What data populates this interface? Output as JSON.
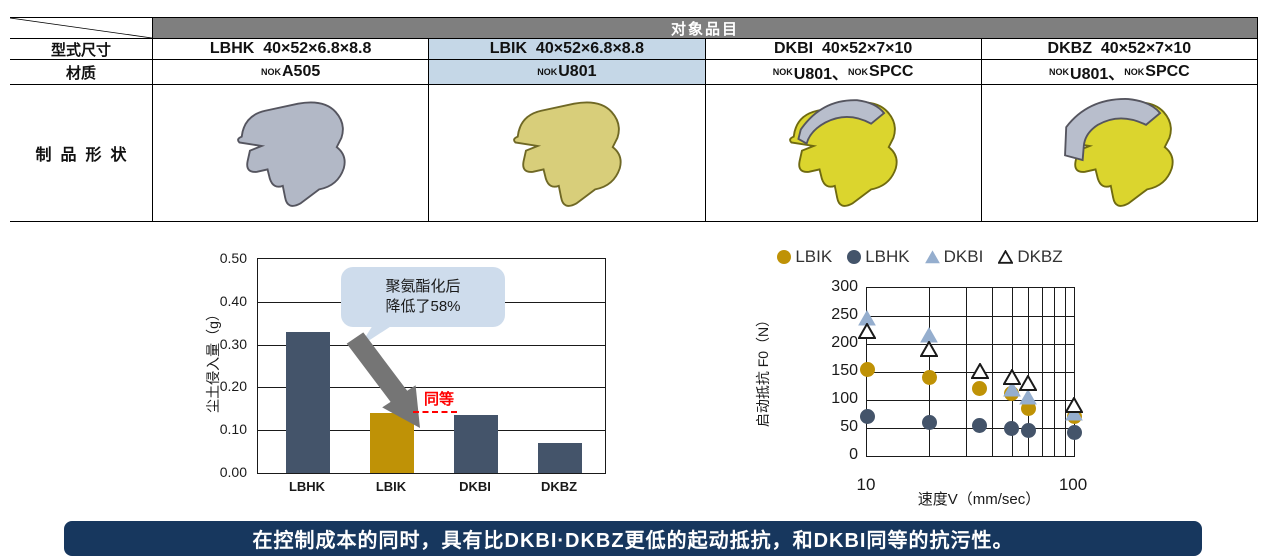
{
  "colors": {
    "header_gray": "#7f7f7f",
    "highlight_blue": "#c5d7e7",
    "dark_slate": "#44546A",
    "gold": "#BF9206",
    "light_blue_marker": "#95AECE",
    "callout_bg": "#cedcec",
    "arrow_gray": "#757575",
    "annotation_red": "#ff0000",
    "banner_navy": "#17375e"
  },
  "table": {
    "header": "对象品目",
    "row_labels": {
      "type_size": "型式尺寸",
      "material": "材质",
      "shape": "制品形状"
    },
    "columns": [
      {
        "code": "LBHK",
        "type_size": "LBHK  40×52×6.8×8.8",
        "material": [
          [
            "NOK",
            "A505"
          ]
        ],
        "highlight": false,
        "shape": "rubber-gray"
      },
      {
        "code": "LBIK",
        "type_size": "LBIK  40×52×6.8×8.8",
        "material": [
          [
            "NOK",
            "U801"
          ]
        ],
        "highlight": true,
        "shape": "rubber-yellow"
      },
      {
        "code": "DKBI",
        "type_size": "DKBI  40×52×7×10",
        "material": [
          [
            "NOK",
            "U801、"
          ],
          [
            "NOK",
            "SPCC"
          ]
        ],
        "highlight": false,
        "shape": "case-seal"
      },
      {
        "code": "DKBZ",
        "type_size": "DKBZ  40×52×7×10",
        "material": [
          [
            "NOK",
            "U801、"
          ],
          [
            "NOK",
            "SPCC"
          ]
        ],
        "highlight": false,
        "shape": "case-seal-L"
      }
    ]
  },
  "chart_data": [
    {
      "type": "bar",
      "title": "",
      "ylabel": "尘土侵入量（g）",
      "xlabel": "",
      "categories": [
        "LBHK",
        "LBIK",
        "DKBI",
        "DKBZ"
      ],
      "values": [
        0.33,
        0.14,
        0.135,
        0.07
      ],
      "ylim": [
        0,
        0.5
      ],
      "yticks": [
        0,
        0.1,
        0.2,
        0.3,
        0.4,
        0.5
      ],
      "bar_colors": [
        "#44546A",
        "#BF9206",
        "#44546A",
        "#44546A"
      ],
      "grid": "horizontal",
      "annotations": {
        "callout": "聚氨酯化后\n降低了58%",
        "equivalence": "同等"
      }
    },
    {
      "type": "scatter",
      "title": "",
      "ylabel": "启动抵抗 F0（N）",
      "xlabel": "速度V（mm/sec）",
      "xscale": "log",
      "xlim": [
        10,
        100
      ],
      "ylim": [
        0,
        300
      ],
      "yticks": [
        0,
        50,
        100,
        150,
        200,
        250,
        300
      ],
      "xticklabels": [
        "10",
        "100"
      ],
      "grid": "both",
      "legend_position": "top",
      "series": [
        {
          "name": "LBIK",
          "marker": "circle",
          "color": "#BF9206",
          "points": [
            [
              10,
              155
            ],
            [
              20,
              140
            ],
            [
              35,
              120
            ],
            [
              50,
              112
            ],
            [
              60,
              85
            ],
            [
              100,
              70
            ]
          ]
        },
        {
          "name": "LBHK",
          "marker": "circle",
          "color": "#44546A",
          "points": [
            [
              10,
              70
            ],
            [
              20,
              60
            ],
            [
              35,
              55
            ],
            [
              50,
              50
            ],
            [
              60,
              45
            ],
            [
              100,
              42
            ]
          ]
        },
        {
          "name": "DKBI",
          "marker": "triangle",
          "color": "#95AECE",
          "points": [
            [
              10,
              245
            ],
            [
              20,
              215
            ],
            [
              50,
              118
            ],
            [
              60,
              103
            ],
            [
              100,
              75
            ]
          ]
        },
        {
          "name": "DKBZ",
          "marker": "triangle-open",
          "color": "#FFFFFF",
          "points": [
            [
              10,
              222
            ],
            [
              20,
              190
            ],
            [
              35,
              150
            ],
            [
              50,
              140
            ],
            [
              60,
              128
            ],
            [
              100,
              90
            ]
          ]
        }
      ]
    }
  ],
  "banner": {
    "text": "在控制成本的同时，具有比DKBI·DKBZ更低的起动抵抗，和DKBI同等的抗污性。"
  }
}
